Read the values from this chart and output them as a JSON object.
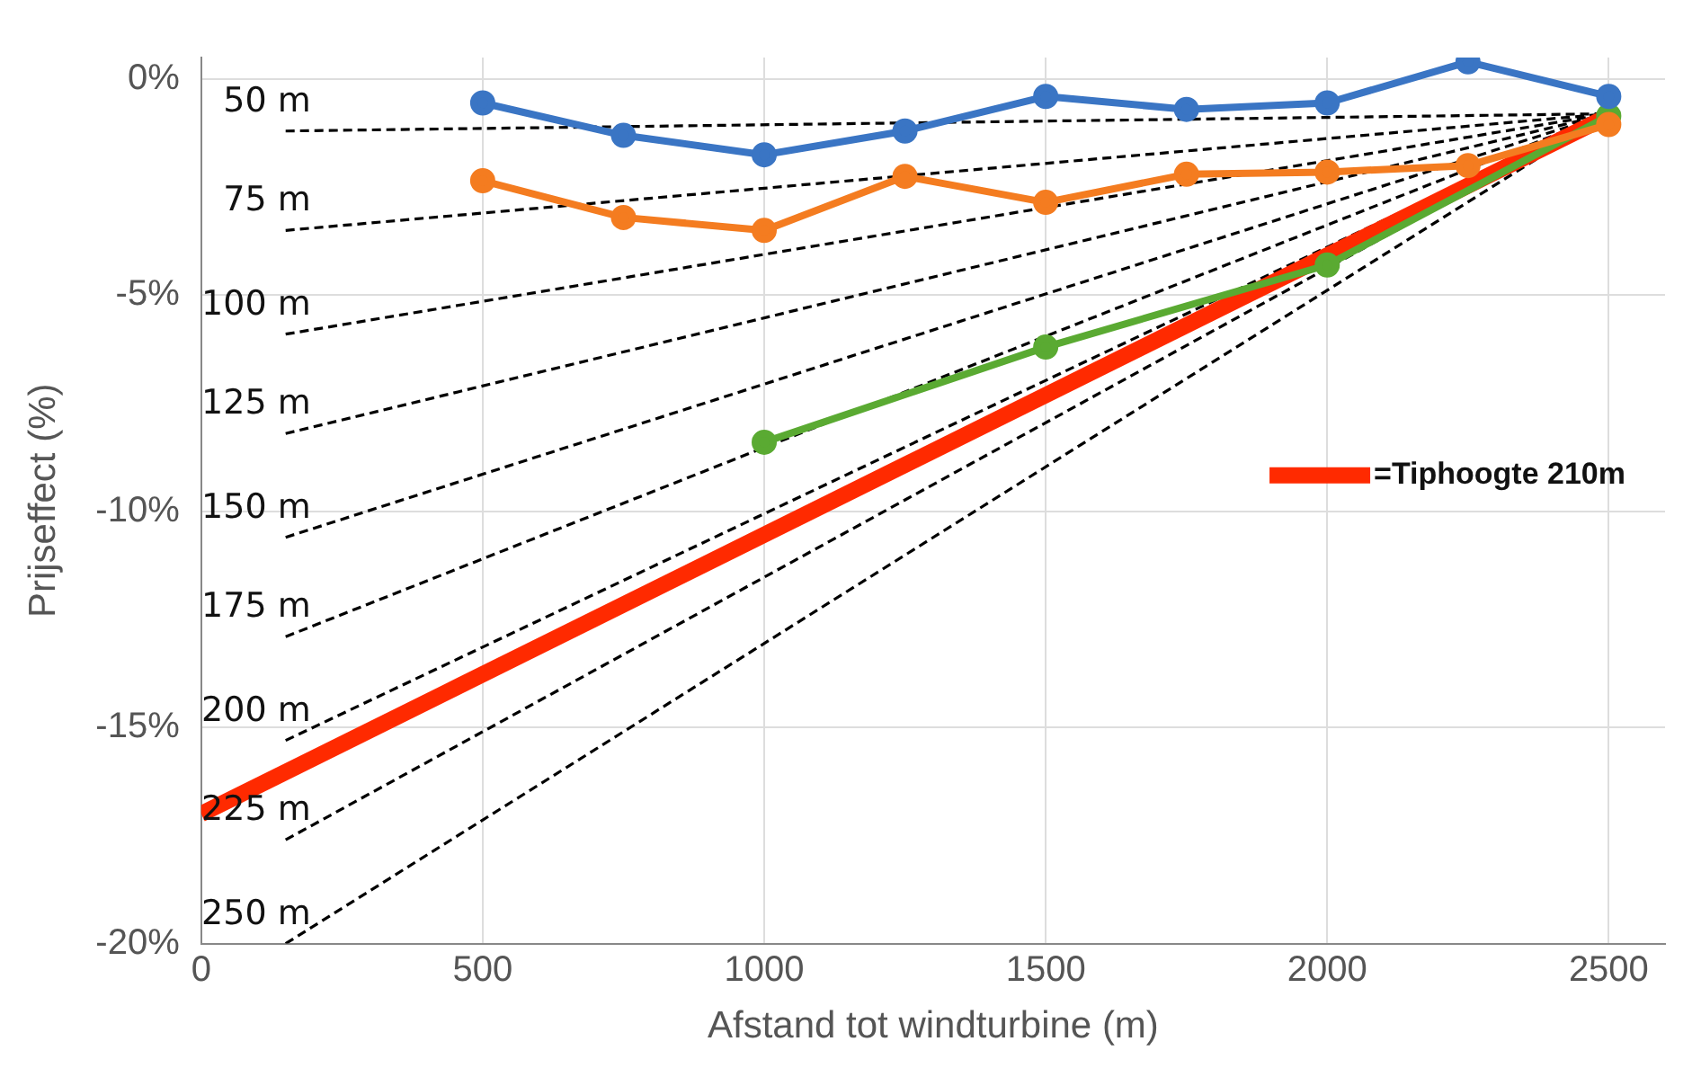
{
  "chart_data": {
    "type": "line",
    "xlabel": "Afstand tot windturbine (m)",
    "ylabel": "Prijseffect (%)",
    "xlim": [
      0,
      2600
    ],
    "xticks": [
      0,
      500,
      1000,
      1500,
      2000,
      2500
    ],
    "ylim": [
      -20,
      0.5
    ],
    "yticks": [
      {
        "value": -20,
        "label": "-20%"
      },
      {
        "value": -15,
        "label": "-15%"
      },
      {
        "value": -10,
        "label": "-10%"
      },
      {
        "value": -5,
        "label": "-5%"
      },
      {
        "value": 0,
        "label": "0%"
      }
    ],
    "grid": true,
    "legend": "right",
    "marker": "circle",
    "series": [
      {
        "line_style": "dashed",
        "marker": "none",
        "name": "50 m",
        "color": "#000000",
        "x": [
          150,
          2500
        ],
        "values": [
          -1.2,
          -0.8
        ]
      },
      {
        "line_style": "dashed",
        "marker": "none",
        "name": "75 m",
        "color": "#000000",
        "x": [
          150,
          2500
        ],
        "values": [
          -3.5,
          -0.8
        ]
      },
      {
        "line_style": "dashed",
        "marker": "none",
        "name": "100 m",
        "color": "#000000",
        "x": [
          150,
          2500
        ],
        "values": [
          -5.9,
          -0.8
        ]
      },
      {
        "line_style": "dashed",
        "marker": "none",
        "name": "125 m",
        "color": "#000000",
        "x": [
          150,
          2500
        ],
        "values": [
          -8.2,
          -0.8
        ]
      },
      {
        "line_style": "dashed",
        "marker": "none",
        "name": "150 m",
        "color": "#000000",
        "x": [
          150,
          2500
        ],
        "values": [
          -10.6,
          -0.8
        ]
      },
      {
        "line_style": "dashed",
        "marker": "none",
        "name": "175 m",
        "color": "#000000",
        "x": [
          150,
          2500
        ],
        "values": [
          -12.9,
          -0.8
        ]
      },
      {
        "line_style": "dashed",
        "marker": "none",
        "name": "200 m",
        "color": "#000000",
        "x": [
          150,
          2500
        ],
        "values": [
          -15.3,
          -0.8
        ]
      },
      {
        "line_style": "dashed",
        "marker": "none",
        "name": "225 m",
        "color": "#000000",
        "x": [
          150,
          2500
        ],
        "values": [
          -17.6,
          -0.8
        ]
      },
      {
        "line_style": "dashed",
        "marker": "none",
        "name": "250 m",
        "color": "#000000",
        "x": [
          150,
          2500
        ],
        "values": [
          -20,
          -0.8
        ]
      },
      {
        "color": "#3a75c4",
        "x": [
          500,
          750,
          1000,
          1250,
          1500,
          1750,
          2000,
          2250,
          2500
        ],
        "values": [
          -0.55,
          -1.3,
          -1.75,
          -1.2,
          -0.4,
          -0.7,
          -0.55,
          0.4,
          -0.4
        ]
      },
      {
        "color": "#f47c20",
        "x": [
          500,
          750,
          1000,
          1250,
          1500,
          1750,
          2000,
          2250,
          2500
        ],
        "values": [
          -2.35,
          -3.2,
          -3.5,
          -2.25,
          -2.85,
          -2.2,
          -2.15,
          -2.0,
          -1.05
        ]
      },
      {
        "color": "#5aaa32",
        "x": [
          1000,
          1500,
          2000,
          2500
        ],
        "values": [
          -8.4,
          -6.2,
          -4.3,
          -0.85
        ]
      },
      {
        "marker": "none",
        "name": "=Tiphoogte 210m",
        "color": "#ff2a00",
        "x": [
          0,
          2500
        ],
        "values": [
          -17,
          -0.85
        ]
      }
    ]
  }
}
